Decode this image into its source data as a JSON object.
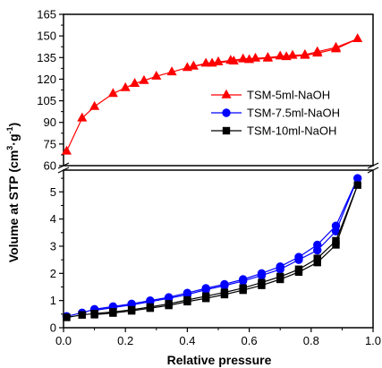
{
  "chart_data": {
    "type": "line",
    "xlabel": "Relative pressure",
    "ylabel_main": "Volume at STP (cm",
    "ylabel_sup1": "3",
    "ylabel_mid": "·g",
    "ylabel_sup2": "-1",
    "ylabel_end": ")",
    "xlim": [
      0.0,
      1.0
    ],
    "xticks": [
      "0.0",
      "0.2",
      "0.4",
      "0.6",
      "0.8",
      "1.0"
    ],
    "y_upper": {
      "ylim": [
        60,
        165
      ],
      "ticks": [
        "60",
        "75",
        "90",
        "105",
        "120",
        "135",
        "150",
        "165"
      ]
    },
    "y_lower": {
      "ylim": [
        0,
        6
      ],
      "ticks": [
        "0",
        "1",
        "2",
        "3",
        "4",
        "5"
      ]
    },
    "legend_position": "right, upper panel",
    "series": [
      {
        "name": "TSM-5ml-NaOH",
        "color": "#ff0000",
        "marker": "triangle",
        "adsorption": [
          [
            0.01,
            70
          ],
          [
            0.06,
            93
          ],
          [
            0.1,
            101
          ],
          [
            0.16,
            110
          ],
          [
            0.2,
            114
          ],
          [
            0.23,
            117
          ],
          [
            0.26,
            119
          ],
          [
            0.3,
            122
          ],
          [
            0.35,
            125
          ],
          [
            0.4,
            128
          ],
          [
            0.42,
            129
          ],
          [
            0.46,
            131
          ],
          [
            0.5,
            132
          ],
          [
            0.54,
            133
          ],
          [
            0.58,
            134
          ],
          [
            0.62,
            134.5
          ],
          [
            0.66,
            135
          ],
          [
            0.7,
            136
          ],
          [
            0.74,
            136.5
          ],
          [
            0.78,
            137
          ],
          [
            0.82,
            139
          ],
          [
            0.88,
            142
          ],
          [
            0.95,
            148
          ]
        ],
        "desorption": [
          [
            0.95,
            148
          ],
          [
            0.88,
            141
          ],
          [
            0.82,
            138
          ],
          [
            0.78,
            136.5
          ],
          [
            0.72,
            135.5
          ],
          [
            0.66,
            134.5
          ],
          [
            0.6,
            133.5
          ],
          [
            0.55,
            132.5
          ],
          [
            0.48,
            131
          ],
          [
            0.42,
            129
          ]
        ]
      },
      {
        "name": "TSM-7.5ml-NaOH",
        "color": "#0000ff",
        "marker": "circle",
        "adsorption": [
          [
            0.01,
            0.42
          ],
          [
            0.06,
            0.55
          ],
          [
            0.1,
            0.68
          ],
          [
            0.16,
            0.78
          ],
          [
            0.22,
            0.88
          ],
          [
            0.28,
            1.0
          ],
          [
            0.34,
            1.12
          ],
          [
            0.4,
            1.28
          ],
          [
            0.46,
            1.45
          ],
          [
            0.52,
            1.6
          ],
          [
            0.58,
            1.78
          ],
          [
            0.64,
            2.0
          ],
          [
            0.7,
            2.25
          ],
          [
            0.76,
            2.6
          ],
          [
            0.82,
            3.05
          ],
          [
            0.88,
            3.75
          ],
          [
            0.95,
            5.5
          ]
        ],
        "desorption": [
          [
            0.95,
            5.5
          ],
          [
            0.88,
            3.55
          ],
          [
            0.82,
            2.85
          ],
          [
            0.76,
            2.5
          ],
          [
            0.7,
            2.15
          ],
          [
            0.64,
            1.92
          ],
          [
            0.58,
            1.72
          ],
          [
            0.52,
            1.55
          ],
          [
            0.46,
            1.4
          ],
          [
            0.4,
            1.22
          ],
          [
            0.34,
            1.08
          ],
          [
            0.28,
            0.96
          ],
          [
            0.22,
            0.84
          ],
          [
            0.16,
            0.74
          ],
          [
            0.1,
            0.64
          ]
        ]
      },
      {
        "name": "TSM-10ml-NaOH",
        "color": "#000000",
        "marker": "square",
        "adsorption": [
          [
            0.01,
            0.38
          ],
          [
            0.06,
            0.47
          ],
          [
            0.1,
            0.52
          ],
          [
            0.16,
            0.58
          ],
          [
            0.22,
            0.66
          ],
          [
            0.28,
            0.76
          ],
          [
            0.34,
            0.88
          ],
          [
            0.4,
            1.02
          ],
          [
            0.46,
            1.16
          ],
          [
            0.52,
            1.3
          ],
          [
            0.58,
            1.46
          ],
          [
            0.64,
            1.66
          ],
          [
            0.7,
            1.88
          ],
          [
            0.76,
            2.15
          ],
          [
            0.82,
            2.55
          ],
          [
            0.88,
            3.2
          ],
          [
            0.95,
            5.25
          ]
        ],
        "desorption": [
          [
            0.95,
            5.25
          ],
          [
            0.88,
            3.05
          ],
          [
            0.82,
            2.4
          ],
          [
            0.76,
            2.05
          ],
          [
            0.7,
            1.78
          ],
          [
            0.64,
            1.56
          ],
          [
            0.58,
            1.38
          ],
          [
            0.52,
            1.22
          ],
          [
            0.46,
            1.08
          ],
          [
            0.4,
            0.96
          ],
          [
            0.34,
            0.82
          ],
          [
            0.28,
            0.72
          ],
          [
            0.22,
            0.62
          ],
          [
            0.16,
            0.54
          ],
          [
            0.1,
            0.48
          ]
        ]
      }
    ]
  }
}
